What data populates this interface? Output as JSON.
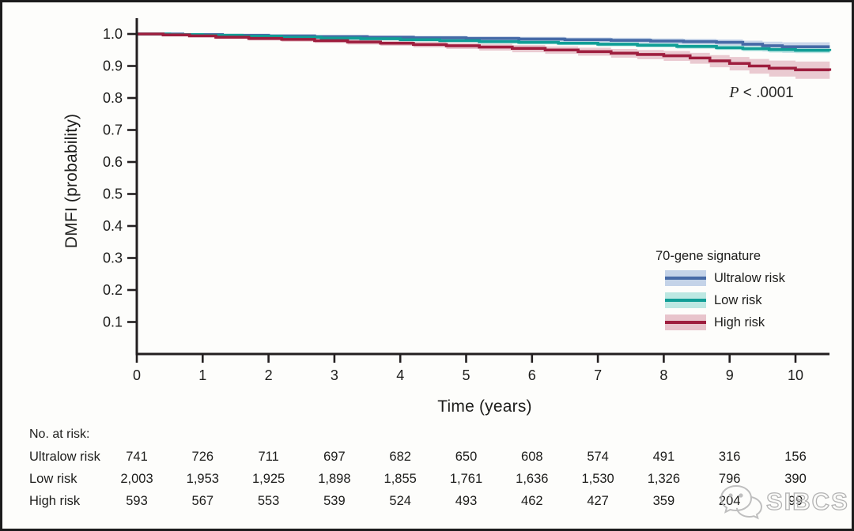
{
  "chart_data": {
    "type": "line",
    "subtype": "kaplan-meier-step-curves-with-confidence-bands",
    "title": "",
    "xlabel": "Time (years)",
    "ylabel": "DMFI (probability)",
    "xlim": [
      0,
      10.5
    ],
    "ylim": [
      0,
      1.0
    ],
    "x_ticks": [
      "0",
      "1",
      "2",
      "3",
      "4",
      "5",
      "6",
      "7",
      "8",
      "9",
      "10"
    ],
    "y_ticks": [
      "1.0",
      "0.9",
      "0.8",
      "0.7",
      "0.6",
      "0.5",
      "0.4",
      "0.3",
      "0.2",
      "0.1"
    ],
    "grid": false,
    "p_value": {
      "symbol": "P",
      "comparison": " < .0001"
    },
    "legend": {
      "title": "70-gene signature",
      "position": "right-middle",
      "entries": [
        "Ultralow risk",
        "Low risk",
        "High risk"
      ]
    },
    "series": [
      {
        "name": "Ultralow risk",
        "line_color": "#466aa6",
        "band_color": "#c4d3e8",
        "points_tphl": [
          [
            0,
            1.0,
            1.0,
            1.0
          ],
          [
            0.7,
            0.998,
            1.0,
            0.995
          ],
          [
            1.3,
            0.996,
            0.999,
            0.992
          ],
          [
            2.0,
            0.994,
            0.998,
            0.989
          ],
          [
            2.7,
            0.992,
            0.997,
            0.986
          ],
          [
            3.5,
            0.99,
            0.995,
            0.984
          ],
          [
            4.2,
            0.988,
            0.994,
            0.981
          ],
          [
            5.0,
            0.986,
            0.992,
            0.979
          ],
          [
            5.8,
            0.984,
            0.991,
            0.976
          ],
          [
            6.5,
            0.982,
            0.989,
            0.973
          ],
          [
            7.2,
            0.98,
            0.988,
            0.97
          ],
          [
            7.8,
            0.978,
            0.986,
            0.967
          ],
          [
            8.3,
            0.976,
            0.985,
            0.964
          ],
          [
            8.8,
            0.974,
            0.983,
            0.96
          ],
          [
            9.2,
            0.968,
            0.979,
            0.952
          ],
          [
            9.5,
            0.963,
            0.976,
            0.945
          ],
          [
            9.8,
            0.96,
            0.974,
            0.941
          ],
          [
            10.52,
            0.96,
            0.974,
            0.941
          ]
        ]
      },
      {
        "name": "Low risk",
        "line_color": "#109e96",
        "band_color": "#bce8e2",
        "points_tphl": [
          [
            0,
            1.0,
            1.0,
            1.0
          ],
          [
            0.5,
            0.998,
            0.999,
            0.996
          ],
          [
            1.0,
            0.996,
            0.998,
            0.993
          ],
          [
            1.6,
            0.993,
            0.996,
            0.99
          ],
          [
            2.2,
            0.99,
            0.994,
            0.986
          ],
          [
            2.8,
            0.987,
            0.991,
            0.983
          ],
          [
            3.4,
            0.985,
            0.989,
            0.98
          ],
          [
            4.0,
            0.982,
            0.987,
            0.977
          ],
          [
            4.6,
            0.979,
            0.984,
            0.974
          ],
          [
            5.2,
            0.976,
            0.981,
            0.971
          ],
          [
            5.8,
            0.974,
            0.979,
            0.968
          ],
          [
            6.4,
            0.971,
            0.977,
            0.965
          ],
          [
            7.0,
            0.968,
            0.974,
            0.961
          ],
          [
            7.6,
            0.965,
            0.971,
            0.958
          ],
          [
            8.2,
            0.961,
            0.968,
            0.954
          ],
          [
            8.8,
            0.957,
            0.965,
            0.95
          ],
          [
            9.2,
            0.954,
            0.962,
            0.946
          ],
          [
            9.6,
            0.951,
            0.959,
            0.942
          ],
          [
            10.0,
            0.949,
            0.957,
            0.94
          ],
          [
            10.52,
            0.947,
            0.956,
            0.938
          ]
        ]
      },
      {
        "name": "High risk",
        "line_color": "#9e1e3e",
        "band_color": "#e8c4cc",
        "points_tphl": [
          [
            0,
            1.0,
            1.0,
            1.0
          ],
          [
            0.4,
            0.997,
            0.999,
            0.994
          ],
          [
            0.8,
            0.994,
            0.997,
            0.99
          ],
          [
            1.2,
            0.99,
            0.994,
            0.985
          ],
          [
            1.7,
            0.986,
            0.991,
            0.98
          ],
          [
            2.2,
            0.983,
            0.988,
            0.976
          ],
          [
            2.7,
            0.979,
            0.985,
            0.972
          ],
          [
            3.2,
            0.975,
            0.982,
            0.967
          ],
          [
            3.7,
            0.971,
            0.978,
            0.963
          ],
          [
            4.2,
            0.967,
            0.975,
            0.958
          ],
          [
            4.7,
            0.963,
            0.972,
            0.953
          ],
          [
            5.2,
            0.959,
            0.969,
            0.948
          ],
          [
            5.7,
            0.955,
            0.965,
            0.943
          ],
          [
            6.2,
            0.95,
            0.961,
            0.938
          ],
          [
            6.7,
            0.945,
            0.957,
            0.932
          ],
          [
            7.2,
            0.94,
            0.953,
            0.926
          ],
          [
            7.6,
            0.936,
            0.95,
            0.921
          ],
          [
            8.0,
            0.932,
            0.947,
            0.916
          ],
          [
            8.4,
            0.925,
            0.941,
            0.907
          ],
          [
            8.7,
            0.916,
            0.934,
            0.896
          ],
          [
            9.0,
            0.908,
            0.928,
            0.886
          ],
          [
            9.3,
            0.9,
            0.922,
            0.876
          ],
          [
            9.6,
            0.893,
            0.917,
            0.867
          ],
          [
            10.0,
            0.888,
            0.914,
            0.86
          ],
          [
            10.52,
            0.885,
            0.912,
            0.856
          ]
        ]
      }
    ],
    "risk_table": {
      "heading": "No. at risk:",
      "time_points": [
        0,
        1,
        2,
        3,
        4,
        5,
        6,
        7,
        8,
        9,
        10
      ],
      "rows": [
        {
          "label": "Ultralow risk",
          "values": [
            "741",
            "726",
            "711",
            "697",
            "682",
            "650",
            "608",
            "574",
            "491",
            "316",
            "156"
          ]
        },
        {
          "label": "Low risk",
          "values": [
            "2,003",
            "1,953",
            "1,925",
            "1,898",
            "1,855",
            "1,761",
            "1,636",
            "1,530",
            "1,326",
            "796",
            "390"
          ]
        },
        {
          "label": "High risk",
          "values": [
            "593",
            "567",
            "553",
            "539",
            "524",
            "493",
            "462",
            "427",
            "359",
            "204",
            "99"
          ]
        }
      ]
    },
    "colors": {
      "axis": "#231f20",
      "text": "#1d1d1b",
      "background": "#fdfdfb"
    }
  },
  "watermark": {
    "text": "SIBCS",
    "icon": "wechat-chat-bubbles-icon"
  }
}
